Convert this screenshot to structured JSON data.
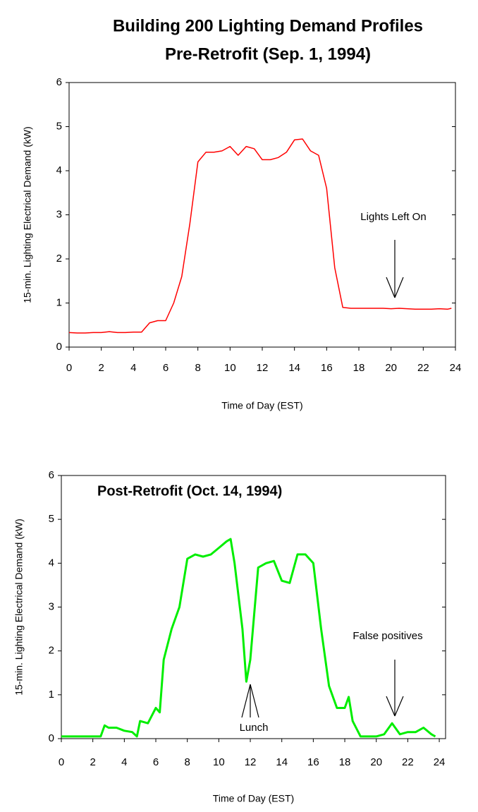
{
  "chart_data": [
    {
      "type": "line",
      "title": "Building 200 Lighting Demand Profiles",
      "subtitle": "Pre-Retrofit (Sep. 1, 1994)",
      "x_label": "Time of Day (EST)",
      "y_label": "15-min. Lighting Electrical Demand (kW)",
      "annotations": [
        "Lights Left On"
      ],
      "color": "#ff0000",
      "x": [
        0,
        0.5,
        1,
        1.5,
        2,
        2.5,
        3,
        3.5,
        4,
        4.5,
        5,
        5.5,
        6,
        6.5,
        7,
        7.5,
        8,
        8.5,
        9,
        9.5,
        10,
        10.5,
        11,
        11.5,
        12,
        12.5,
        13,
        13.5,
        14,
        14.5,
        15,
        15.5,
        16,
        16.5,
        17,
        17.5,
        18,
        18.5,
        19,
        19.5,
        20,
        20.5,
        21,
        21.5,
        22,
        22.5,
        23,
        23.5,
        23.75
      ],
      "values": [
        0.33,
        0.32,
        0.32,
        0.33,
        0.33,
        0.35,
        0.33,
        0.33,
        0.34,
        0.34,
        0.55,
        0.6,
        0.6,
        1.0,
        1.6,
        2.8,
        4.2,
        4.42,
        4.42,
        4.45,
        4.55,
        4.35,
        4.55,
        4.5,
        4.25,
        4.25,
        4.3,
        4.42,
        4.7,
        4.72,
        4.45,
        4.35,
        3.6,
        1.8,
        0.9,
        0.88,
        0.88,
        0.88,
        0.88,
        0.88,
        0.87,
        0.88,
        0.87,
        0.86,
        0.86,
        0.86,
        0.87,
        0.86,
        0.88
      ],
      "xlim": [
        0,
        24
      ],
      "ylim": [
        0,
        6
      ],
      "xticks": [
        0,
        2,
        4,
        6,
        8,
        10,
        12,
        14,
        16,
        18,
        20,
        22,
        24
      ],
      "yticks": [
        0,
        1,
        2,
        3,
        4,
        5,
        6
      ]
    },
    {
      "type": "line",
      "title": "Post-Retrofit (Oct. 14, 1994)",
      "x_label": "Time of Day (EST)",
      "y_label": "15-min. Lighting Electrical Demand (kW)",
      "annotations": [
        "False positives",
        "Lunch"
      ],
      "color": "#00ee00",
      "x": [
        0,
        0.5,
        1,
        1.5,
        2,
        2.5,
        2.75,
        3,
        3.5,
        4,
        4.5,
        4.8,
        5,
        5.5,
        6,
        6.25,
        6.5,
        7,
        7.5,
        8,
        8.5,
        9,
        9.5,
        10,
        10.5,
        10.75,
        11,
        11.5,
        11.75,
        12,
        12.5,
        13,
        13.5,
        14,
        14.5,
        15,
        15.5,
        16,
        16.5,
        17,
        17.5,
        18,
        18.25,
        18.5,
        19,
        19.5,
        20,
        20.5,
        21,
        21.5,
        22,
        22.5,
        23,
        23.5,
        23.75
      ],
      "values": [
        0.05,
        0.05,
        0.05,
        0.05,
        0.05,
        0.05,
        0.3,
        0.25,
        0.25,
        0.18,
        0.15,
        0.05,
        0.4,
        0.35,
        0.7,
        0.6,
        1.8,
        2.5,
        3.0,
        4.1,
        4.2,
        4.15,
        4.2,
        4.35,
        4.5,
        4.55,
        4.0,
        2.5,
        1.3,
        1.8,
        3.9,
        4.0,
        4.05,
        3.6,
        3.55,
        4.2,
        4.2,
        4.0,
        2.5,
        1.2,
        0.7,
        0.7,
        0.95,
        0.4,
        0.05,
        0.05,
        0.05,
        0.1,
        0.35,
        0.1,
        0.15,
        0.15,
        0.25,
        0.1,
        0.05
      ],
      "xlim": [
        0,
        24.4
      ],
      "ylim": [
        0,
        6
      ],
      "xticks": [
        0,
        2,
        4,
        6,
        8,
        10,
        12,
        14,
        16,
        18,
        20,
        22,
        24
      ],
      "yticks": [
        0,
        1,
        2,
        3,
        4,
        5,
        6
      ]
    }
  ]
}
